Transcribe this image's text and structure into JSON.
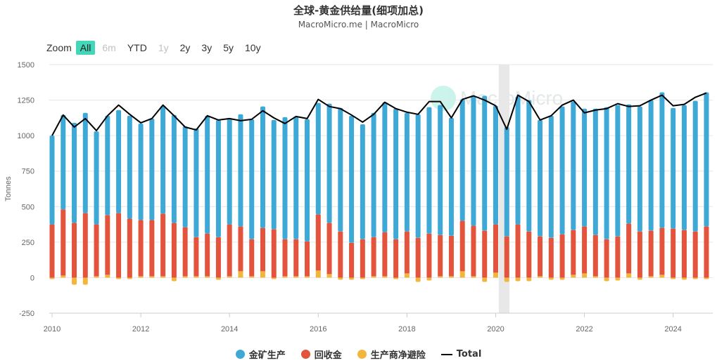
{
  "header": {
    "title": "全球-黄金供给量(细项加总)",
    "subtitle": "MacroMicro.me | MacroMicro"
  },
  "zoom": {
    "label": "Zoom",
    "buttons": [
      {
        "label": "All",
        "state": "active"
      },
      {
        "label": "6m",
        "state": "disabled"
      },
      {
        "label": "YTD",
        "state": "normal"
      },
      {
        "label": "1y",
        "state": "disabled"
      },
      {
        "label": "2y",
        "state": "normal"
      },
      {
        "label": "3y",
        "state": "normal"
      },
      {
        "label": "5y",
        "state": "normal"
      },
      {
        "label": "10y",
        "state": "normal"
      }
    ]
  },
  "watermark": "MacroMicro",
  "colors": {
    "mine": "#3ea9d6",
    "recycled": "#e4533c",
    "hedging": "#f2b63c",
    "total": "#000000",
    "highlight": "#e8e8e8",
    "grid": "#e6e6e6"
  },
  "legend": [
    {
      "name": "金矿生产",
      "kind": "dot",
      "color": "#3ea9d6"
    },
    {
      "name": "回收金",
      "kind": "dot",
      "color": "#e4533c"
    },
    {
      "name": "生产商净避险",
      "kind": "dot",
      "color": "#f2b63c"
    },
    {
      "name": "Total",
      "kind": "line",
      "color": "#000000"
    }
  ],
  "chart_data": {
    "type": "bar",
    "stacked": true,
    "title": "全球-黄金供给量(细项加总)",
    "ylabel": "Tonnes",
    "xlabel": "",
    "ylim": [
      -250,
      1500
    ],
    "yticks": [
      -250,
      0,
      250,
      500,
      750,
      1000,
      1250,
      1500
    ],
    "xlim": [
      2010.0,
      2024.83
    ],
    "xticks": [
      2010,
      2012,
      2014,
      2016,
      2018,
      2020,
      2022,
      2024
    ],
    "highlight_range": [
      2020.07,
      2020.31
    ],
    "x": [
      2010.0,
      2010.25,
      2010.5,
      2010.75,
      2011.0,
      2011.25,
      2011.5,
      2011.75,
      2012.0,
      2012.25,
      2012.5,
      2012.75,
      2013.0,
      2013.25,
      2013.5,
      2013.75,
      2014.0,
      2014.25,
      2014.5,
      2014.75,
      2015.0,
      2015.25,
      2015.5,
      2015.75,
      2016.0,
      2016.25,
      2016.5,
      2016.75,
      2017.0,
      2017.25,
      2017.5,
      2017.75,
      2018.0,
      2018.25,
      2018.5,
      2018.75,
      2019.0,
      2019.25,
      2019.5,
      2019.75,
      2020.0,
      2020.25,
      2020.5,
      2020.75,
      2021.0,
      2021.25,
      2021.5,
      2021.75,
      2022.0,
      2022.25,
      2022.5,
      2022.75,
      2023.0,
      2023.25,
      2023.5,
      2023.75,
      2024.0,
      2024.25,
      2024.5,
      2024.75
    ],
    "series": [
      {
        "name": "金矿生产",
        "values": [
          625,
          665,
          705,
          705,
          655,
          700,
          725,
          725,
          680,
          715,
          760,
          760,
          710,
          765,
          830,
          825,
          745,
          790,
          845,
          855,
          770,
          860,
          865,
          860,
          785,
          840,
          870,
          895,
          810,
          875,
          915,
          920,
          835,
          870,
          890,
          915,
          830,
          855,
          915,
          950,
          835,
          770,
          900,
          925,
          820,
          860,
          900,
          905,
          830,
          890,
          930,
          925,
          840,
          880,
          920,
          955,
          850,
          880,
          920,
          945
        ]
      },
      {
        "name": "回收金",
        "values": [
          375,
          465,
          385,
          455,
          365,
          420,
          455,
          415,
          395,
          395,
          440,
          385,
          345,
          275,
          300,
          285,
          365,
          315,
          260,
          305,
          340,
          260,
          260,
          245,
          395,
          360,
          325,
          245,
          270,
          275,
          310,
          270,
          295,
          280,
          310,
          290,
          285,
          355,
          355,
          330,
          340,
          290,
          375,
          325,
          280,
          280,
          305,
          315,
          330,
          290,
          270,
          290,
          350,
          325,
          320,
          330,
          345,
          335,
          325,
          360
        ]
      },
      {
        "name": "生产商净避险",
        "values": [
          -10,
          15,
          -50,
          -50,
          10,
          20,
          -10,
          -10,
          10,
          10,
          10,
          -25,
          10,
          10,
          10,
          -15,
          10,
          45,
          10,
          45,
          -10,
          10,
          10,
          10,
          50,
          25,
          -15,
          -15,
          -10,
          10,
          10,
          -10,
          30,
          -30,
          -20,
          10,
          10,
          45,
          10,
          -30,
          35,
          -30,
          -25,
          -25,
          10,
          -15,
          -15,
          20,
          30,
          10,
          -25,
          -20,
          30,
          -15,
          10,
          20,
          -10,
          -15,
          -10,
          -10
        ]
      },
      {
        "name": "Total",
        "type": "line",
        "values": [
          1000,
          1145,
          1060,
          1120,
          1035,
          1140,
          1215,
          1150,
          1090,
          1120,
          1215,
          1140,
          1060,
          1040,
          1140,
          1110,
          1120,
          1105,
          1115,
          1175,
          1125,
          1085,
          1135,
          1120,
          1255,
          1205,
          1190,
          1145,
          1095,
          1150,
          1235,
          1190,
          1165,
          1150,
          1240,
          1240,
          1125,
          1255,
          1280,
          1250,
          1210,
          1045,
          1285,
          1240,
          1110,
          1140,
          1215,
          1250,
          1160,
          1180,
          1190,
          1225,
          1205,
          1210,
          1250,
          1285,
          1210,
          1220,
          1270,
          1300
        ]
      }
    ]
  }
}
